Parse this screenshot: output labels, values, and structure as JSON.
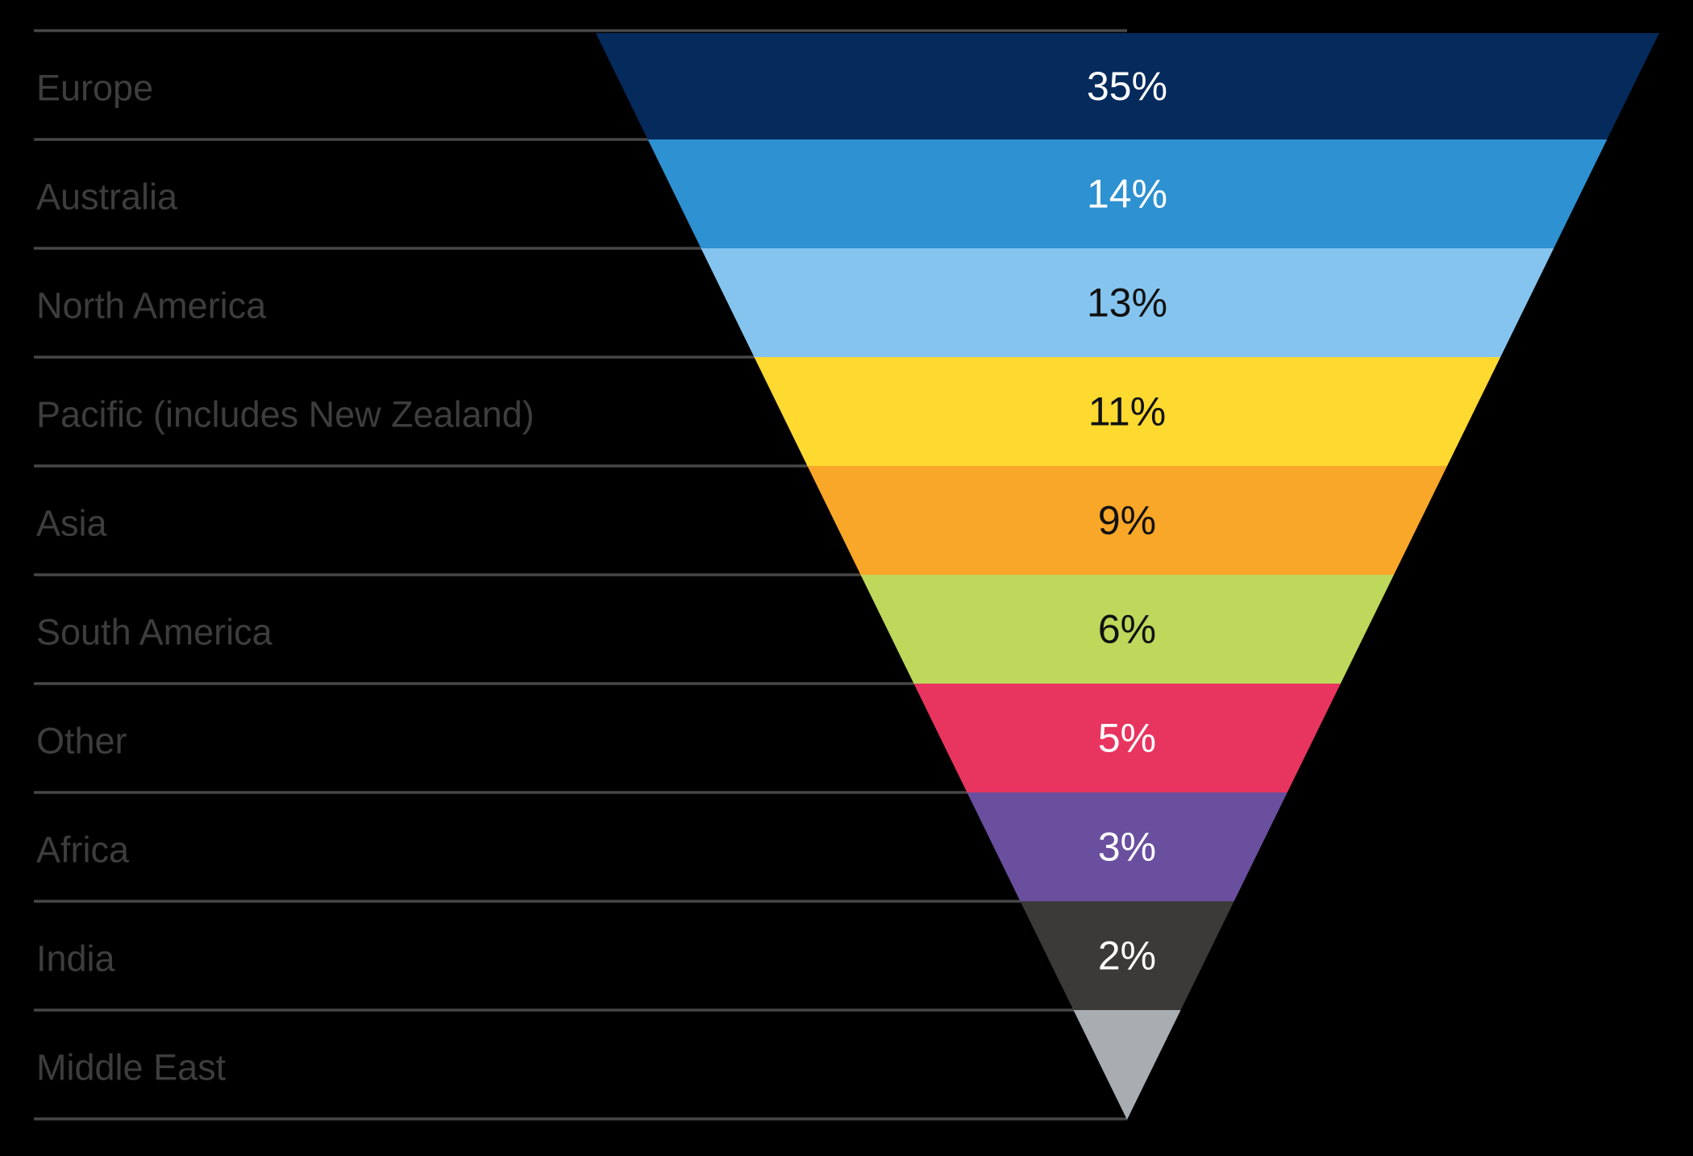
{
  "chart_data": {
    "type": "funnel",
    "title": "",
    "categories": [
      "Europe",
      "Australia",
      "North America",
      "Pacific (includes New Zealand)",
      "Asia",
      "South America",
      "Other",
      "Africa",
      "India",
      "Middle East"
    ],
    "values": [
      35,
      14,
      13,
      11,
      9,
      6,
      5,
      3,
      2,
      null
    ],
    "percent_labels": [
      "35%",
      "14%",
      "13%",
      "11%",
      "9%",
      "6%",
      "5%",
      "3%",
      "2%",
      ""
    ],
    "band_colors": [
      "#052a5c",
      "#2e91d1",
      "#85c4ee",
      "#fed92f",
      "#f9a728",
      "#bdd85b",
      "#e8355f",
      "#6a4f9f",
      "#3b3a38",
      "#a8adb2"
    ],
    "value_text_colors": [
      "#ffffff",
      "#ffffff",
      "#111111",
      "#111111",
      "#111111",
      "#111111",
      "#ffffff",
      "#ffffff",
      "#ffffff",
      "#111111"
    ],
    "layout": {
      "background": "#000000",
      "category_label_color": "#3d3d3d",
      "divider_line_color": "#474747",
      "legend": "none",
      "bands": "equal-height",
      "shape": "inverted-pyramid"
    }
  }
}
